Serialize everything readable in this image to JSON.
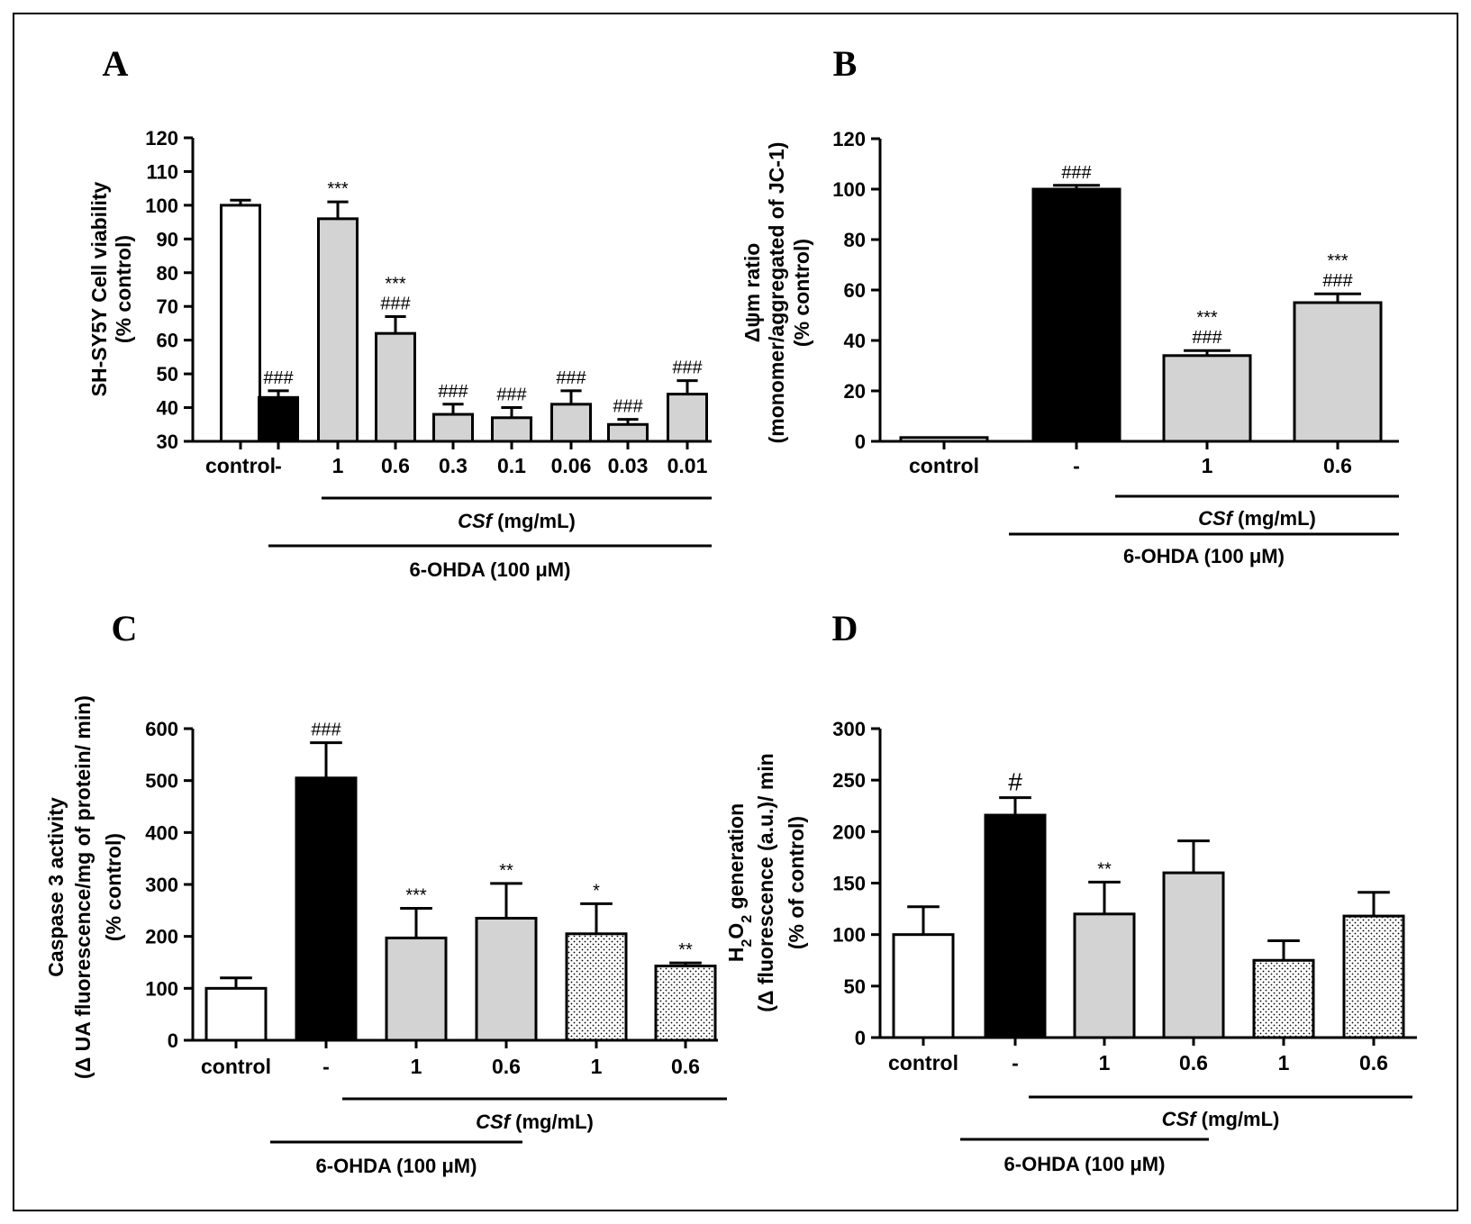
{
  "colors": {
    "white": "#ffffff",
    "black": "#000000",
    "gray": "#d3d3d3",
    "dotted": "dotted-pattern"
  },
  "chart_data": [
    {
      "panel": "A",
      "type": "bar",
      "ylabel": [
        "SH-SY5Y Cell viability",
        "(% control)"
      ],
      "ylim": [
        30,
        120
      ],
      "yticks": [
        30,
        40,
        50,
        60,
        70,
        80,
        90,
        100,
        110,
        120
      ],
      "categories": [
        "control",
        "-",
        "1",
        "0.6",
        "0.3",
        "0.1",
        "0.06",
        "0.03",
        "0.01"
      ],
      "values": [
        100,
        43,
        96,
        62,
        38,
        37,
        41,
        35,
        44
      ],
      "errors": [
        1.5,
        2,
        5,
        5,
        3,
        3,
        4,
        1.5,
        4
      ],
      "fills": [
        "white",
        "black",
        "gray",
        "gray",
        "gray",
        "gray",
        "gray",
        "gray",
        "gray"
      ],
      "annotations": [
        [],
        [
          "###"
        ],
        [
          "***"
        ],
        [
          "***",
          "###"
        ],
        [
          "###"
        ],
        [
          "###"
        ],
        [
          "###"
        ],
        [
          "###"
        ],
        [
          "###"
        ]
      ],
      "brackets": [
        {
          "label": "CSf (mg/mL)",
          "italic_part": "CSf",
          "rest": " (mg/mL)",
          "from": 2,
          "to": 8
        },
        {
          "label": "6-OHDA (100 μM)",
          "from": 1,
          "to": 8
        }
      ]
    },
    {
      "panel": "B",
      "type": "bar",
      "ylabel": [
        "Δψm ratio",
        "(monomer/aggregated of JC-1)",
        "(% control)"
      ],
      "ylim": [
        0,
        120
      ],
      "yticks": [
        0,
        20,
        40,
        60,
        80,
        100,
        120
      ],
      "categories": [
        "control",
        "-",
        "1",
        "0.6"
      ],
      "values": [
        1.5,
        100,
        34,
        55
      ],
      "errors": [
        0,
        1.5,
        2,
        3.5
      ],
      "fills": [
        "white",
        "black",
        "gray",
        "gray"
      ],
      "annotations": [
        [],
        [
          "###"
        ],
        [
          "***",
          "###"
        ],
        [
          "***",
          "###"
        ]
      ],
      "brackets": [
        {
          "label": "CSf (mg/mL)",
          "italic_part": "CSf",
          "rest": " (mg/mL)",
          "from": 2,
          "to": 3
        },
        {
          "label": "6-OHDA (100 μM)",
          "from": 1,
          "to": 3
        }
      ]
    },
    {
      "panel": "C",
      "type": "bar",
      "ylabel": [
        "Caspase 3 activity",
        "(Δ UA fluorescence/mg of protein/ min)",
        "(% control)"
      ],
      "ylim": [
        0,
        600
      ],
      "yticks": [
        0,
        100,
        200,
        300,
        400,
        500,
        600
      ],
      "categories": [
        "control",
        "-",
        "1",
        "0.6",
        "1",
        "0.6"
      ],
      "values": [
        100,
        505,
        197,
        235,
        205,
        143
      ],
      "errors": [
        20,
        68,
        57,
        67,
        58,
        6
      ],
      "fills": [
        "white",
        "black",
        "gray",
        "gray",
        "dotted",
        "dotted"
      ],
      "annotations": [
        [],
        [
          "###"
        ],
        [
          "***"
        ],
        [
          "**"
        ],
        [
          "*"
        ],
        [
          "**"
        ]
      ],
      "brackets": [
        {
          "label": "CSf (mg/mL)",
          "italic_part": "CSf",
          "rest": " (mg/mL)",
          "from": 2,
          "to": 5
        },
        {
          "label": "6-OHDA (100 μM)",
          "from": 1,
          "to": 3
        }
      ]
    },
    {
      "panel": "D",
      "type": "bar",
      "ylabel": [
        "H2O2 generation",
        "(Δ fluorescence (a.u.)/ min",
        "(% of control)"
      ],
      "ylim": [
        0,
        300
      ],
      "yticks": [
        0,
        50,
        100,
        150,
        200,
        250,
        300
      ],
      "categories": [
        "control",
        "-",
        "1",
        "0.6",
        "1",
        "0.6"
      ],
      "values": [
        100,
        216,
        120,
        160,
        75,
        118
      ],
      "errors": [
        27,
        17,
        31,
        31,
        19,
        23
      ],
      "fills": [
        "white",
        "black",
        "gray",
        "gray",
        "dotted",
        "dotted"
      ],
      "annotations": [
        [],
        [
          "#"
        ],
        [
          "**"
        ],
        [],
        [],
        []
      ],
      "brackets": [
        {
          "label": "CSf (mg/mL)",
          "italic_part": "CSf",
          "rest": " (mg/mL)",
          "from": 2,
          "to": 5
        },
        {
          "label": "6-OHDA (100 μM)",
          "from": 1,
          "to": 3
        }
      ]
    }
  ]
}
